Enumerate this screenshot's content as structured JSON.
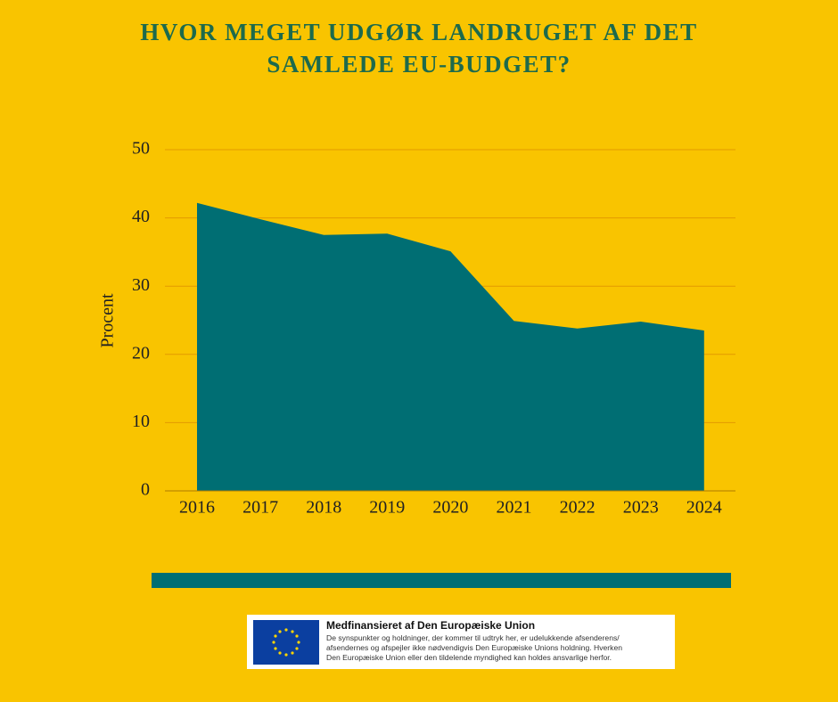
{
  "chart_data": {
    "type": "area",
    "title": "HVOR MEGET UDGØR LANDRUGET AF DET SAMLEDE EU-BUDGET?",
    "y_label": "Procent",
    "categories": [
      "2016",
      "2017",
      "2018",
      "2019",
      "2020",
      "2021",
      "2022",
      "2023",
      "2024"
    ],
    "values": [
      42.2,
      39.8,
      37.5,
      37.7,
      35.1,
      24.9,
      23.8,
      24.8,
      23.5
    ],
    "color": "#006e73",
    "ylim": [
      0,
      50
    ],
    "yticks": [
      0,
      10,
      20,
      30,
      40,
      50
    ],
    "grid": true
  },
  "footer": {
    "heading": "Medfinansieret af Den Europæiske Union",
    "disclaimer": [
      "De synspunkter og holdninger, der kommer til udtryk her, er udelukkende afsenderens/",
      "afsendernes og afspejler ikke nødvendigvis Den Europæiske Unions holdning. Hverken",
      "Den Europæiske Union eller den tildelende myndighed kan holdes ansvarlige herfor."
    ]
  }
}
